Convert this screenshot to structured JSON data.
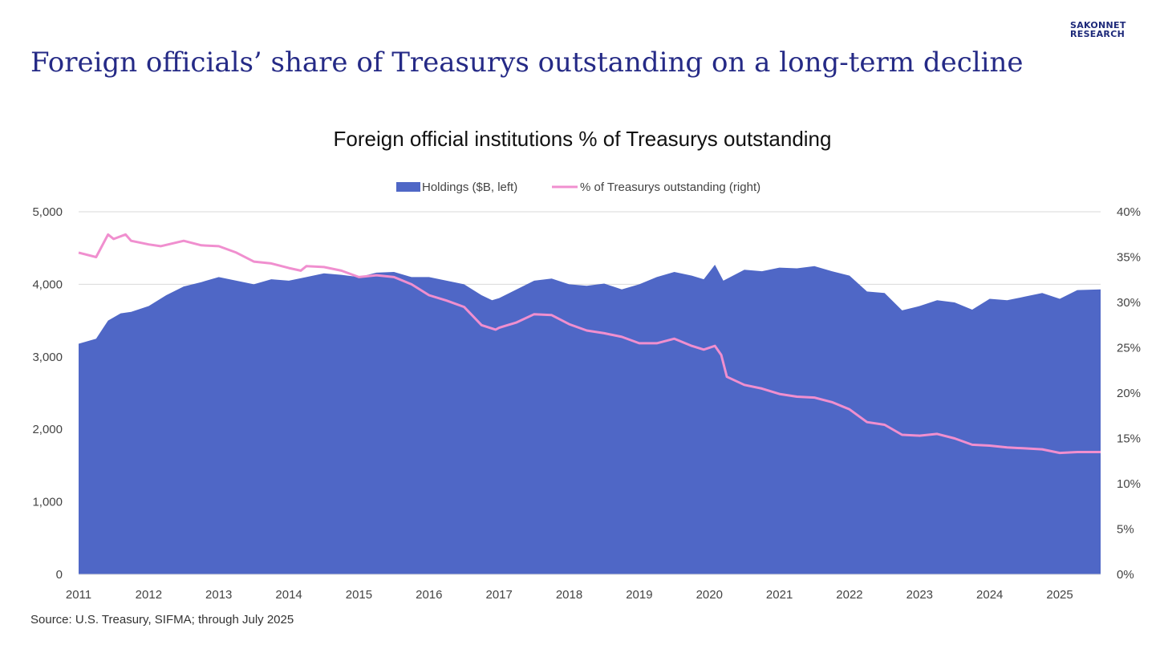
{
  "brand": {
    "line1": "SAKONNET",
    "line2": "RESEARCH"
  },
  "headline": "Foreign officials’ share of Treasurys outstanding on a long-term decline",
  "source": "Source: U.S. Treasury, SIFMA; through July 2025",
  "colors": {
    "area": "#4f67c6",
    "line": "#f08fcf",
    "title": "#252a86"
  },
  "chart_data": {
    "type": "area",
    "title": "Foreign official institutions % of Treasurys outstanding",
    "legend": [
      "Holdings ($B, left)",
      "% of Treasurys outstanding (right)"
    ],
    "legend_position": "top-center",
    "x_tick_labels": [
      "2011",
      "2012",
      "2013",
      "2014",
      "2015",
      "2016",
      "2017",
      "2018",
      "2019",
      "2020",
      "2021",
      "2022",
      "2023",
      "2024",
      "2025"
    ],
    "y_left": {
      "ylim": [
        0,
        5000
      ],
      "tick_labels": [
        "0",
        "1,000",
        "2,000",
        "3,000",
        "4,000",
        "5,000"
      ]
    },
    "y_right": {
      "ylim": [
        0,
        40
      ],
      "tick_labels": [
        "0%",
        "5%",
        "10%",
        "15%",
        "20%",
        "25%",
        "30%",
        "35%",
        "40%"
      ]
    },
    "x_range": [
      2011.0,
      2025.583
    ],
    "series": [
      {
        "name": "Holdings ($B, left)",
        "axis": "left",
        "type": "area",
        "x": [
          2011.0,
          2011.25,
          2011.42,
          2011.6,
          2011.75,
          2012.0,
          2012.25,
          2012.5,
          2012.75,
          2013.0,
          2013.25,
          2013.5,
          2013.75,
          2014.0,
          2014.25,
          2014.5,
          2014.75,
          2015.0,
          2015.25,
          2015.5,
          2015.75,
          2016.0,
          2016.25,
          2016.5,
          2016.75,
          2016.9,
          2017.0,
          2017.25,
          2017.5,
          2017.75,
          2018.0,
          2018.25,
          2018.5,
          2018.75,
          2019.0,
          2019.25,
          2019.5,
          2019.75,
          2019.92,
          2020.08,
          2020.2,
          2020.5,
          2020.75,
          2021.0,
          2021.25,
          2021.5,
          2021.75,
          2022.0,
          2022.25,
          2022.5,
          2022.75,
          2023.0,
          2023.25,
          2023.5,
          2023.75,
          2024.0,
          2024.25,
          2024.5,
          2024.75,
          2025.0,
          2025.25,
          2025.583
        ],
        "values": [
          3180,
          3250,
          3500,
          3600,
          3620,
          3700,
          3850,
          3970,
          4030,
          4100,
          4050,
          4000,
          4070,
          4050,
          4100,
          4150,
          4130,
          4100,
          4160,
          4170,
          4100,
          4100,
          4050,
          4000,
          3850,
          3780,
          3810,
          3930,
          4050,
          4080,
          4000,
          3980,
          4010,
          3930,
          4000,
          4100,
          4170,
          4120,
          4070,
          4270,
          4050,
          4200,
          4180,
          4230,
          4220,
          4250,
          4180,
          4120,
          3900,
          3880,
          3640,
          3700,
          3780,
          3750,
          3650,
          3800,
          3780,
          3830,
          3880,
          3800,
          3920,
          3930
        ]
      },
      {
        "name": "% of Treasurys outstanding (right)",
        "axis": "right",
        "type": "line",
        "x": [
          2011.0,
          2011.25,
          2011.42,
          2011.5,
          2011.67,
          2011.75,
          2012.0,
          2012.17,
          2012.5,
          2012.75,
          2013.0,
          2013.25,
          2013.5,
          2013.75,
          2014.0,
          2014.17,
          2014.25,
          2014.5,
          2014.75,
          2015.0,
          2015.25,
          2015.5,
          2015.75,
          2016.0,
          2016.25,
          2016.5,
          2016.75,
          2016.95,
          2017.0,
          2017.25,
          2017.5,
          2017.75,
          2018.0,
          2018.25,
          2018.5,
          2018.75,
          2019.0,
          2019.25,
          2019.5,
          2019.75,
          2019.92,
          2020.08,
          2020.17,
          2020.25,
          2020.5,
          2020.75,
          2021.0,
          2021.25,
          2021.5,
          2021.75,
          2022.0,
          2022.25,
          2022.5,
          2022.75,
          2023.0,
          2023.25,
          2023.5,
          2023.75,
          2024.0,
          2024.25,
          2024.5,
          2024.75,
          2025.0,
          2025.25,
          2025.583
        ],
        "values": [
          35.5,
          35.0,
          37.5,
          37.0,
          37.5,
          36.8,
          36.4,
          36.2,
          36.8,
          36.3,
          36.2,
          35.5,
          34.5,
          34.3,
          33.8,
          33.5,
          34.0,
          33.9,
          33.5,
          32.8,
          33.0,
          32.8,
          32.0,
          30.8,
          30.2,
          29.5,
          27.5,
          27.0,
          27.2,
          27.8,
          28.7,
          28.6,
          27.6,
          26.9,
          26.6,
          26.2,
          25.5,
          25.5,
          26.0,
          25.2,
          24.8,
          25.2,
          24.2,
          21.8,
          20.9,
          20.5,
          19.9,
          19.6,
          19.5,
          19.0,
          18.2,
          16.8,
          16.5,
          15.4,
          15.3,
          15.5,
          15.0,
          14.3,
          14.2,
          14.0,
          13.9,
          13.8,
          13.4,
          13.5,
          13.5
        ]
      }
    ]
  }
}
